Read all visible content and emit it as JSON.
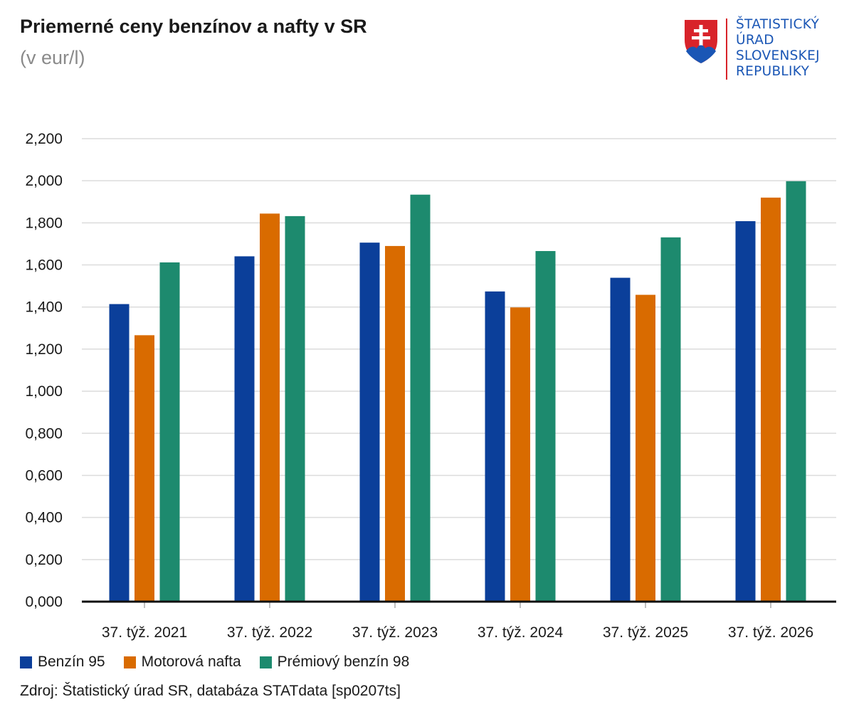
{
  "header": {
    "title": "Priemerné ceny benzínov a nafty v SR",
    "subtitle": "(v eur/l)"
  },
  "logo": {
    "lines": [
      "ŠTATISTICKÝ",
      "ÚRAD",
      "SLOVENSKEJ",
      "REPUBLIKY"
    ],
    "color": "#1a56b5",
    "accent": "#d8232a"
  },
  "chart_data": {
    "type": "bar",
    "title": "Priemerné ceny benzínov a nafty v SR",
    "subtitle": "(v eur/l)",
    "categories": [
      "37. týž. 2021",
      "37. týž. 2022",
      "37. týž. 2023",
      "37. týž. 2024",
      "37. týž. 2025",
      "37. týž. 2026"
    ],
    "series": [
      {
        "name": "Benzín 95",
        "color": "#0b3f9a",
        "values": [
          1.414,
          1.641,
          1.706,
          1.474,
          1.539,
          1.808
        ]
      },
      {
        "name": "Motorová nafta",
        "color": "#d96b00",
        "values": [
          1.266,
          1.844,
          1.69,
          1.398,
          1.458,
          1.92
        ]
      },
      {
        "name": "Prémiový benzín 98",
        "color": "#1d8a6e",
        "values": [
          1.612,
          1.832,
          1.934,
          1.666,
          1.731,
          1.998
        ]
      }
    ],
    "yticks": [
      "0,000",
      "0,200",
      "0,400",
      "0,600",
      "0,800",
      "1,000",
      "1,200",
      "1,400",
      "1,600",
      "1,800",
      "2,000",
      "2,200"
    ],
    "ylim": [
      0,
      2.2
    ],
    "grid": true,
    "legend": "bottom-left"
  },
  "source": {
    "text": "Zdroj: Štatistický úrad SR, databáza STATdata  [sp0207ts]"
  }
}
